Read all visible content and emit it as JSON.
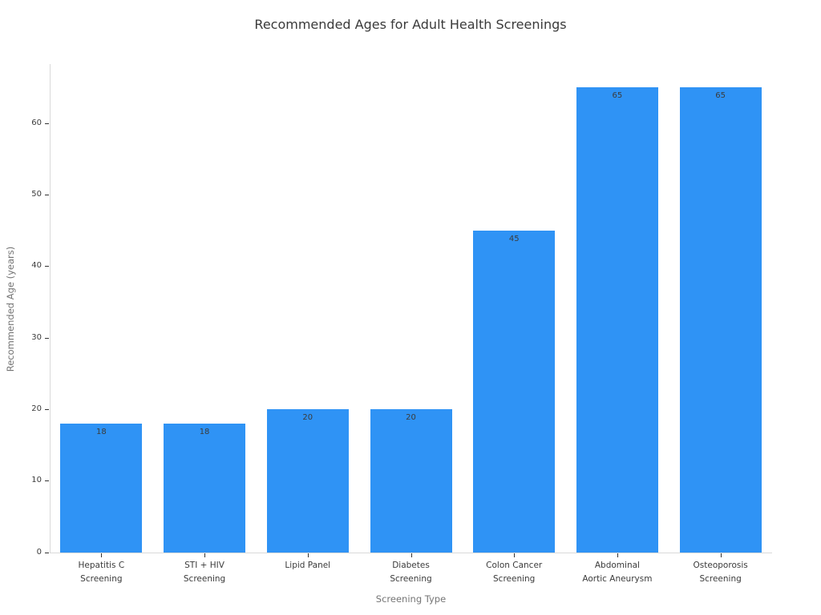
{
  "chart_data": {
    "type": "bar",
    "title": "Recommended Ages for Adult Health Screenings",
    "xlabel": "Screening Type",
    "ylabel": "Recommended Age (years)",
    "categories": [
      "Hepatitis C\nScreening",
      "STI + HIV\nScreening",
      "Lipid Panel",
      "Diabetes\nScreening",
      "Colon Cancer\nScreening",
      "Abdominal\nAortic Aneurysm",
      "Osteoporosis\nScreening"
    ],
    "values": [
      18,
      18,
      20,
      20,
      45,
      65,
      65
    ],
    "value_labels": [
      "18",
      "18",
      "20",
      "20",
      "45",
      "65",
      "65"
    ],
    "yticks": [
      0,
      10,
      20,
      30,
      40,
      50,
      60
    ],
    "ylim": [
      0,
      68.3
    ],
    "grid": false,
    "legend_position": "none",
    "colors": {
      "bar": "#2F93F5",
      "spine": "#d9d9d9",
      "tick_mark": "#333333",
      "tick_label": "#3b3b3b",
      "axis_title": "#757575",
      "title": "#3a3a3a",
      "value_label": "#3b3b3b"
    }
  }
}
